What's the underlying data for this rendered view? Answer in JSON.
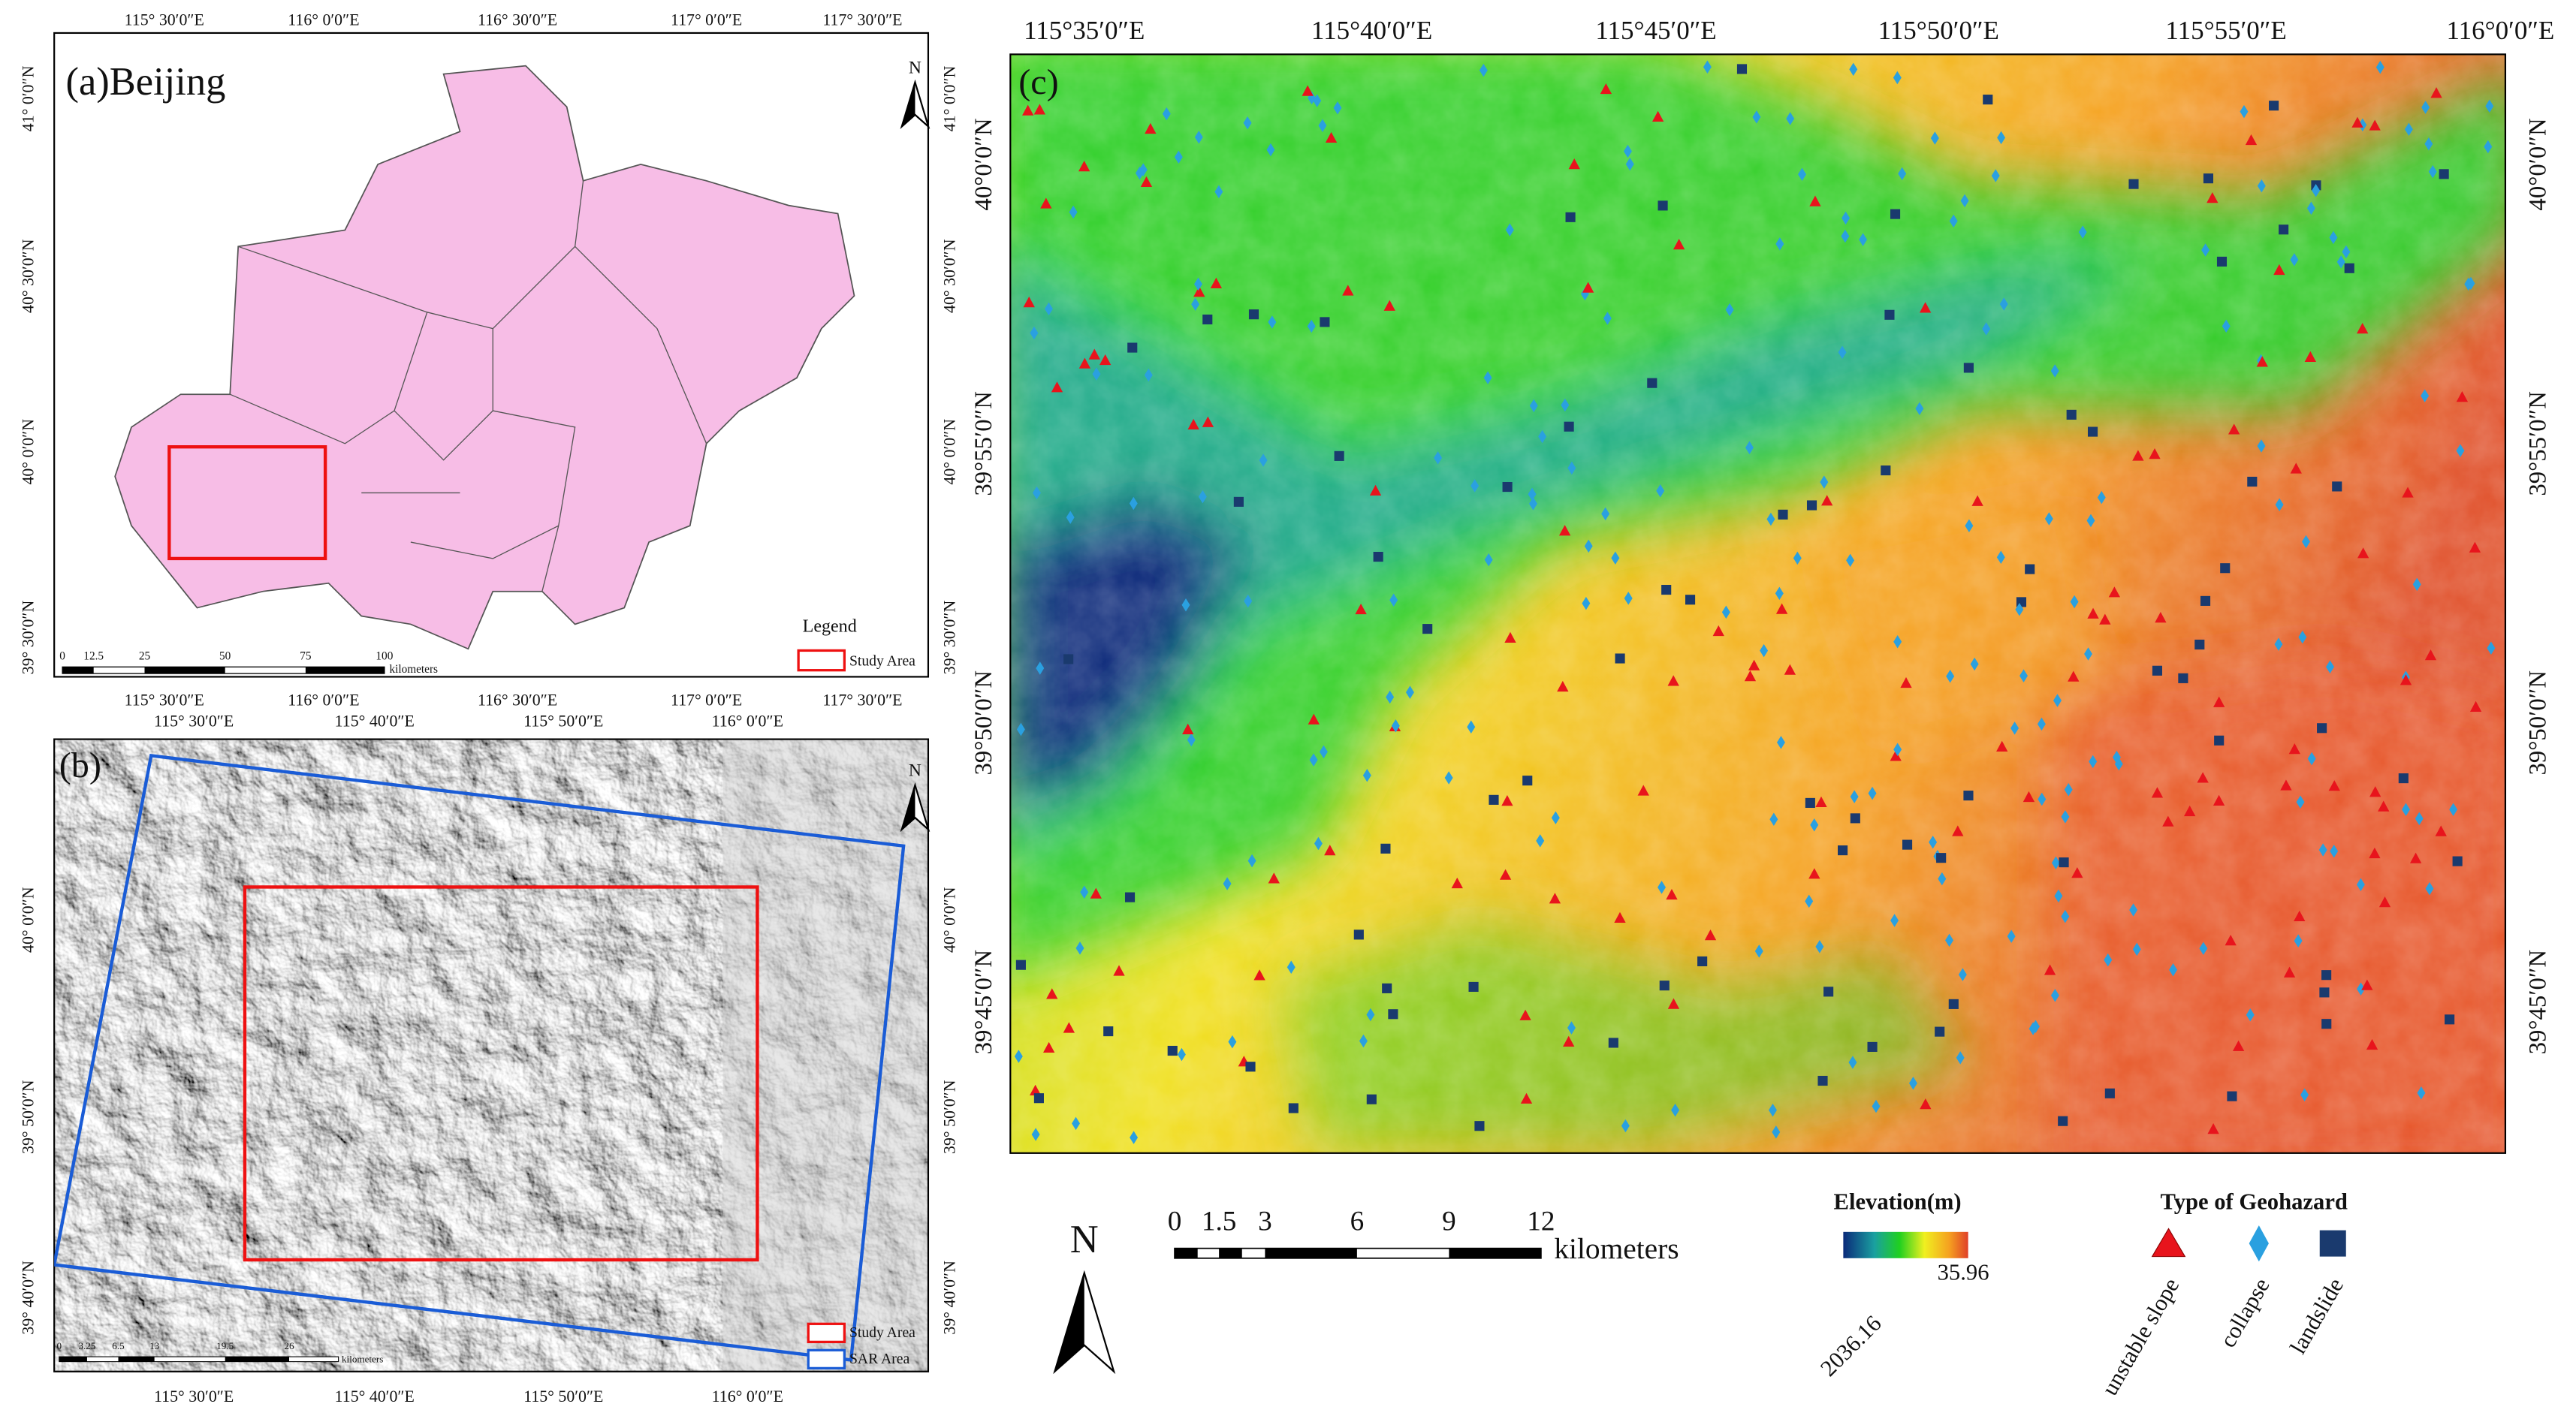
{
  "panel_a": {
    "label": "(a)Beijing",
    "north": "N",
    "lon_labels": [
      "115° 30′0″E",
      "116° 0′0″E",
      "116° 30′0″E",
      "117° 0′0″E",
      "117° 30′0″E"
    ],
    "lat_labels": [
      "41° 0′0″N",
      "40° 30′0″N",
      "40° 0′0″N",
      "39° 30′0″N"
    ],
    "scale_labels": [
      0,
      12.5,
      25,
      50,
      75,
      100
    ],
    "scale_unit": "kilometers",
    "legend_title": "Legend",
    "legend_items": [
      "Study Area"
    ]
  },
  "panel_b": {
    "label": "(b)",
    "north": "N",
    "lon_labels": [
      "115° 30′0″E",
      "115° 40′0″E",
      "115° 50′0″E",
      "116° 0′0″E"
    ],
    "lat_labels": [
      "40° 0′0″N",
      "39° 50′0″N",
      "39° 40′0″N"
    ],
    "scale_labels": [
      0,
      3.25,
      6.5,
      13,
      19.5,
      26
    ],
    "scale_unit": "kilometers",
    "legend_items": [
      "Study Area",
      "SAR Area"
    ]
  },
  "panel_c": {
    "label": "(c)",
    "north": "N",
    "lon_labels": [
      "115°35′0″E",
      "115°40′0″E",
      "115°45′0″E",
      "115°50′0″E",
      "115°55′0″E",
      "116°0′0″E"
    ],
    "lat_labels": [
      "40°0′0″N",
      "39°55′0″N",
      "39°50′0″N",
      "39°45′0″N"
    ],
    "scale_labels": [
      0,
      1.5,
      3,
      6,
      9,
      12
    ],
    "scale_unit": "kilometers",
    "elevation_title": "Elevation(m)",
    "elevation_max": 2036.16,
    "elevation_min": 35.96,
    "hazard_title": "Type of Geohazard",
    "hazard_types": [
      "unstable slope",
      "collapse",
      "landslide"
    ]
  }
}
